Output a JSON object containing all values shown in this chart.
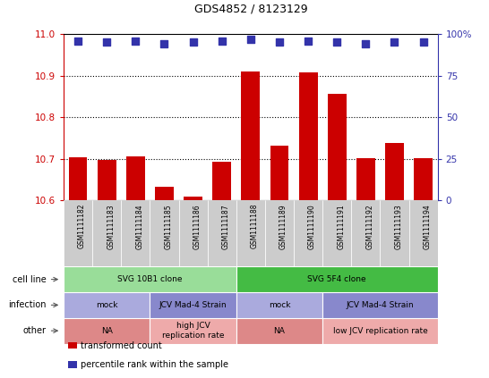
{
  "title": "GDS4852 / 8123129",
  "samples": [
    "GSM1111182",
    "GSM1111183",
    "GSM1111184",
    "GSM1111185",
    "GSM1111186",
    "GSM1111187",
    "GSM1111188",
    "GSM1111189",
    "GSM1111190",
    "GSM1111191",
    "GSM1111192",
    "GSM1111193",
    "GSM1111194"
  ],
  "bar_values": [
    10.703,
    10.697,
    10.705,
    10.632,
    10.61,
    10.692,
    10.91,
    10.732,
    10.908,
    10.857,
    10.702,
    10.737,
    10.701
  ],
  "percentile_values": [
    96,
    95,
    96,
    94,
    95,
    96,
    97,
    95,
    96,
    95,
    94,
    95,
    95
  ],
  "ylim_left": [
    10.6,
    11.0
  ],
  "ylim_right": [
    0,
    100
  ],
  "yticks_left": [
    10.6,
    10.7,
    10.8,
    10.9,
    11.0
  ],
  "yticks_right": [
    0,
    25,
    50,
    75,
    100
  ],
  "bar_color": "#CC0000",
  "dot_color": "#3333AA",
  "dot_size": 30,
  "bar_width": 0.65,
  "plot_bg": "#ffffff",
  "tick_label_bg": "#cccccc",
  "cell_line_groups": [
    {
      "label": "SVG 10B1 clone",
      "start": 0,
      "end": 6,
      "color": "#99DD99"
    },
    {
      "label": "SVG 5F4 clone",
      "start": 6,
      "end": 13,
      "color": "#44BB44"
    }
  ],
  "infection_groups": [
    {
      "label": "mock",
      "start": 0,
      "end": 3,
      "color": "#AAAADD"
    },
    {
      "label": "JCV Mad-4 Strain",
      "start": 3,
      "end": 6,
      "color": "#8888CC"
    },
    {
      "label": "mock",
      "start": 6,
      "end": 9,
      "color": "#AAAADD"
    },
    {
      "label": "JCV Mad-4 Strain",
      "start": 9,
      "end": 13,
      "color": "#8888CC"
    }
  ],
  "other_groups": [
    {
      "label": "NA",
      "start": 0,
      "end": 3,
      "color": "#DD8888"
    },
    {
      "label": "high JCV\nreplication rate",
      "start": 3,
      "end": 6,
      "color": "#EEAAAA"
    },
    {
      "label": "NA",
      "start": 6,
      "end": 9,
      "color": "#DD8888"
    },
    {
      "label": "low JCV replication rate",
      "start": 9,
      "end": 13,
      "color": "#EEAAAA"
    }
  ],
  "row_labels": [
    "cell line",
    "infection",
    "other"
  ],
  "legend_items": [
    {
      "color": "#CC0000",
      "marker": "s",
      "label": "transformed count"
    },
    {
      "color": "#3333AA",
      "marker": "s",
      "label": "percentile rank within the sample"
    }
  ]
}
